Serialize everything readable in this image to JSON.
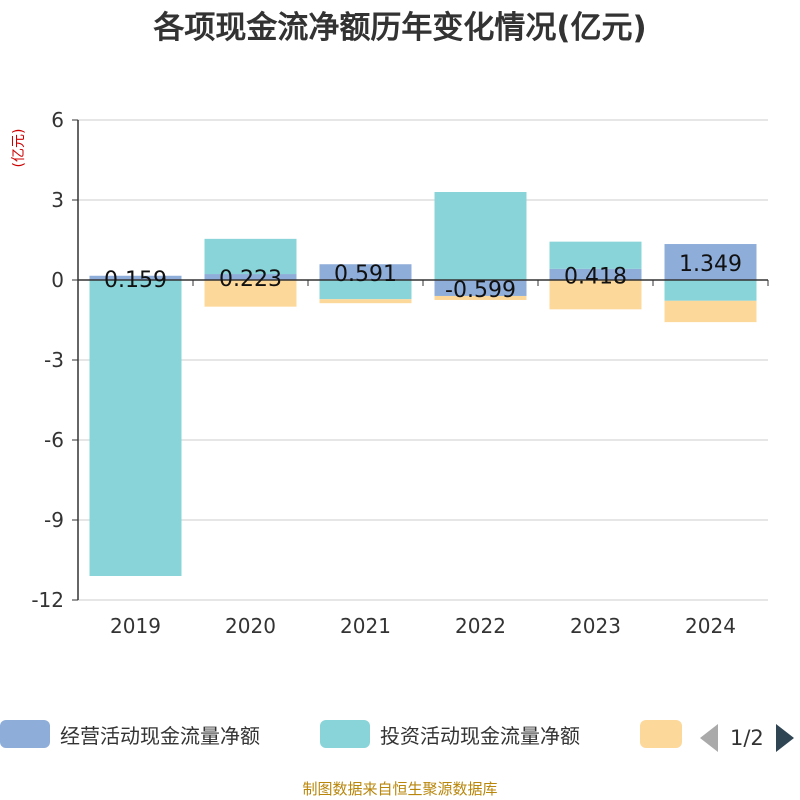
{
  "chart_data": {
    "type": "bar",
    "stacked": true,
    "title": "各项现金流净额历年变化情况(亿元)",
    "ylabel": "(亿元)",
    "xlabel": "",
    "categories": [
      "2019",
      "2020",
      "2021",
      "2022",
      "2023",
      "2024"
    ],
    "ylim": [
      -12,
      6
    ],
    "yticks": [
      6,
      3,
      0,
      -3,
      -6,
      -9,
      -12
    ],
    "grid": true,
    "series": [
      {
        "name": "经营活动现金流量净额",
        "color": "#8eadd9",
        "values": [
          0.159,
          0.223,
          0.591,
          -0.599,
          0.418,
          1.349
        ],
        "labels": [
          "0.159",
          "0.223",
          "0.591",
          "-0.599",
          "0.418",
          "1.349"
        ]
      },
      {
        "name": "投资活动现金流量净额",
        "color": "#88d4d8",
        "values": [
          -11.1,
          1.32,
          -0.72,
          3.3,
          1.02,
          -0.78
        ],
        "labels": []
      },
      {
        "name": "",
        "color": "#fdd89b",
        "values": [
          0.0,
          -1.0,
          -0.15,
          -0.15,
          -1.1,
          -0.8
        ],
        "labels": []
      }
    ]
  },
  "legend": {
    "items": [
      "经营活动现金流量净额",
      "投资活动现金流量净额",
      ""
    ],
    "page": "1/2"
  },
  "source": "制图数据来自恒生聚源数据库"
}
